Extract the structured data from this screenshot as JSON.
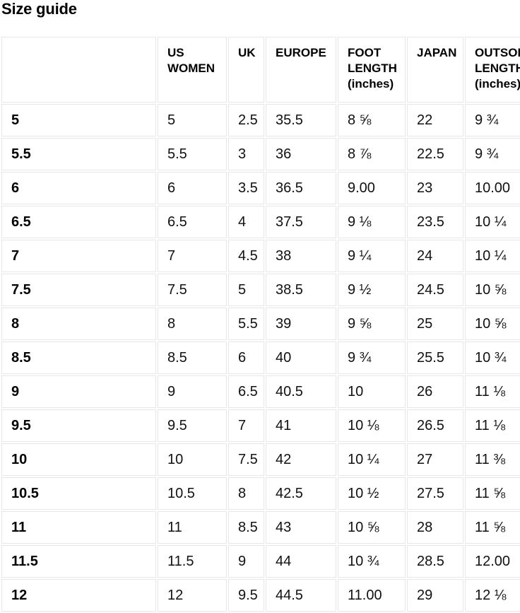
{
  "page_title": "Size guide",
  "colors": {
    "text": "#111111",
    "border": "#e7e7e7",
    "background": "#ffffff"
  },
  "size_table": {
    "columns": [
      "",
      "US WOMEN",
      "UK",
      "EUROPE",
      "FOOT LENGTH (inches)",
      "JAPAN",
      "OUTSOLE LENGTH (inches)"
    ],
    "rows": [
      [
        "5",
        "5",
        "2.5",
        "35.5",
        "8 ⅝",
        "22",
        "9 ¾"
      ],
      [
        "5.5",
        "5.5",
        "3",
        "36",
        "8 ⅞",
        "22.5",
        "9 ¾"
      ],
      [
        "6",
        "6",
        "3.5",
        "36.5",
        "9.00",
        "23",
        "10.00"
      ],
      [
        "6.5",
        "6.5",
        "4",
        "37.5",
        "9 ⅛",
        "23.5",
        "10 ¼"
      ],
      [
        "7",
        "7",
        "4.5",
        "38",
        "9 ¼",
        "24",
        "10 ¼"
      ],
      [
        "7.5",
        "7.5",
        "5",
        "38.5",
        "9 ½",
        "24.5",
        "10 ⅝"
      ],
      [
        "8",
        "8",
        "5.5",
        "39",
        "9 ⅝",
        "25",
        "10 ⅝"
      ],
      [
        "8.5",
        "8.5",
        "6",
        "40",
        "9 ¾",
        "25.5",
        "10 ¾"
      ],
      [
        "9",
        "9",
        "6.5",
        "40.5",
        "10",
        "26",
        "11 ⅛"
      ],
      [
        "9.5",
        "9.5",
        "7",
        "41",
        "10 ⅛",
        "26.5",
        "11 ⅛"
      ],
      [
        "10",
        "10",
        "7.5",
        "42",
        "10 ¼",
        "27",
        "11 ⅜"
      ],
      [
        "10.5",
        "10.5",
        "8",
        "42.5",
        "10 ½",
        "27.5",
        "11 ⅝"
      ],
      [
        "11",
        "11",
        "8.5",
        "43",
        "10 ⅝",
        "28",
        "11 ⅝"
      ],
      [
        "11.5",
        "11.5",
        "9",
        "44",
        "10 ¾",
        "28.5",
        "12.00"
      ],
      [
        "12",
        "12",
        "9.5",
        "44.5",
        "11.00",
        "29",
        "12 ⅛"
      ]
    ]
  }
}
